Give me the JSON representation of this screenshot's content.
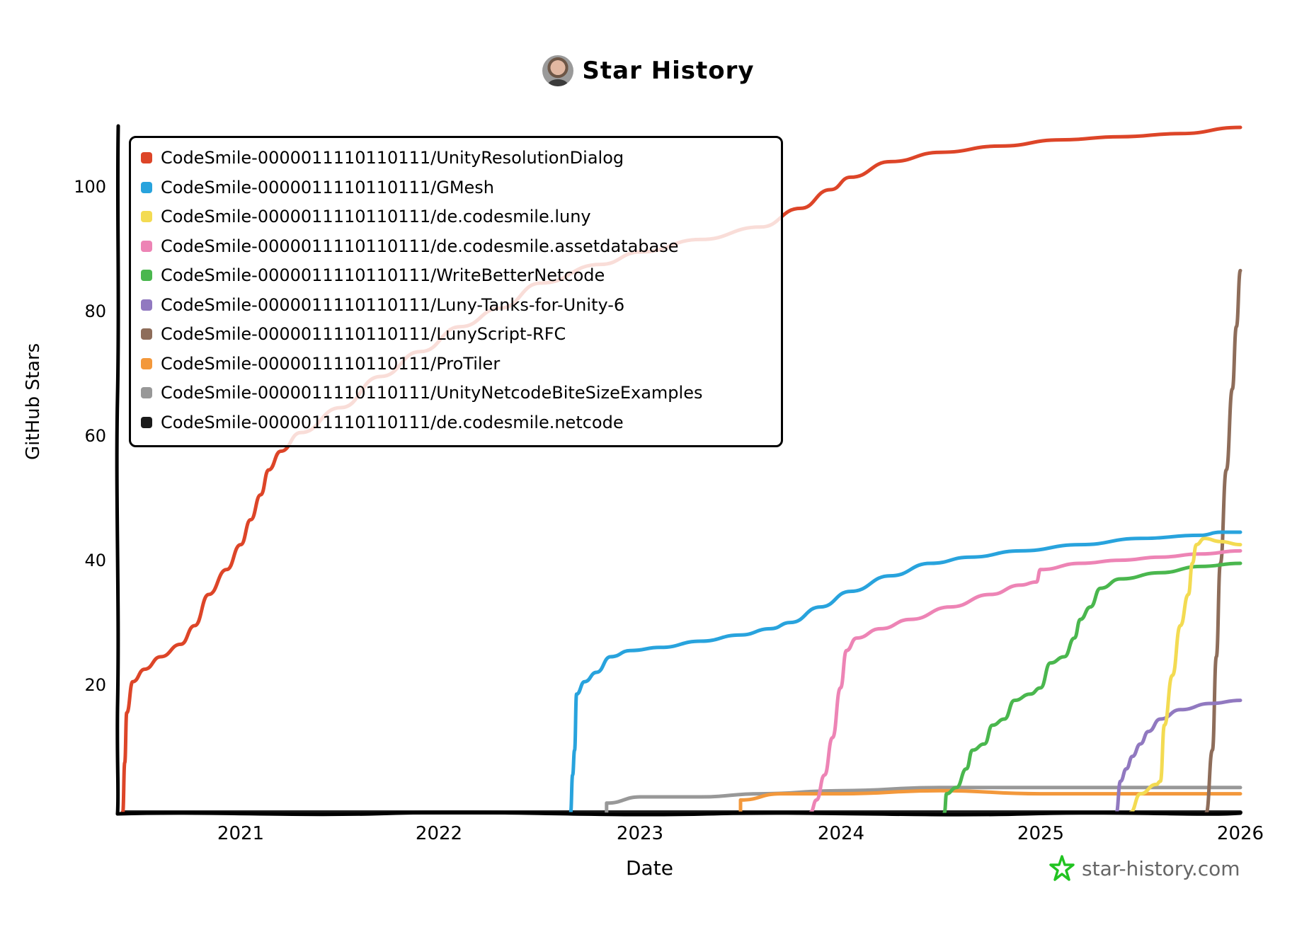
{
  "header": {
    "avatar_alt": "user-avatar",
    "title": "Star History"
  },
  "axes": {
    "xlabel": "Date",
    "ylabel": "GitHub Stars",
    "xticks": [
      "2021",
      "2022",
      "2023",
      "2024",
      "2025",
      "2026"
    ],
    "yticks": [
      "20",
      "40",
      "60",
      "80",
      "100"
    ]
  },
  "watermark": {
    "text": "star-history.com",
    "icon": "star-outline-icon",
    "color": "#21c321"
  },
  "legend": [
    {
      "label": "CodeSmile-0000011110110111/UnityResolutionDialog",
      "color": "#dd4528"
    },
    {
      "label": "CodeSmile-0000011110110111/GMesh",
      "color": "#28a3dd"
    },
    {
      "label": "CodeSmile-0000011110110111/de.codesmile.luny",
      "color": "#f3db52"
    },
    {
      "label": "CodeSmile-0000011110110111/de.codesmile.assetdatabase",
      "color": "#ed84b5"
    },
    {
      "label": "CodeSmile-0000011110110111/WriteBetterNetcode",
      "color": "#4ab74e"
    },
    {
      "label": "CodeSmile-0000011110110111/Luny-Tanks-for-Unity-6",
      "color": "#9179c0"
    },
    {
      "label": "CodeSmile-0000011110110111/LunyScript-RFC",
      "color": "#8e6d5a"
    },
    {
      "label": "CodeSmile-0000011110110111/ProTiler",
      "color": "#f3983b"
    },
    {
      "label": "CodeSmile-0000011110110111/UnityNetcodeBiteSizeExamples",
      "color": "#989898"
    },
    {
      "label": "CodeSmile-0000011110110111/de.codesmile.netcode",
      "color": "#1a1a1a"
    }
  ],
  "chart_data": {
    "type": "line",
    "title": "Star History",
    "xlabel": "Date",
    "ylabel": "GitHub Stars",
    "xlim": [
      2020.4,
      2026.0
    ],
    "ylim": [
      0,
      110
    ],
    "grid": false,
    "legend_position": "top-left",
    "x_tick_labels": [
      "2021",
      "2022",
      "2023",
      "2024",
      "2025",
      "2026"
    ],
    "y_tick_labels": [
      20,
      40,
      60,
      80,
      100
    ],
    "series": [
      {
        "name": "CodeSmile-0000011110110111/UnityResolutionDialog",
        "color": "#dd4528",
        "points": [
          [
            2020.41,
            0
          ],
          [
            2020.42,
            8
          ],
          [
            2020.43,
            16
          ],
          [
            2020.46,
            21
          ],
          [
            2020.52,
            23
          ],
          [
            2020.6,
            25
          ],
          [
            2020.7,
            27
          ],
          [
            2020.77,
            30
          ],
          [
            2020.84,
            35
          ],
          [
            2020.93,
            39
          ],
          [
            2021.0,
            43
          ],
          [
            2021.05,
            47
          ],
          [
            2021.1,
            51
          ],
          [
            2021.14,
            55
          ],
          [
            2021.2,
            58
          ],
          [
            2021.3,
            61
          ],
          [
            2021.5,
            65
          ],
          [
            2021.7,
            70
          ],
          [
            2021.9,
            74
          ],
          [
            2022.1,
            78
          ],
          [
            2022.3,
            81
          ],
          [
            2022.5,
            85
          ],
          [
            2022.8,
            88
          ],
          [
            2023.0,
            90
          ],
          [
            2023.3,
            92
          ],
          [
            2023.6,
            94
          ],
          [
            2023.8,
            97
          ],
          [
            2023.95,
            100
          ],
          [
            2024.05,
            102
          ],
          [
            2024.25,
            104.5
          ],
          [
            2024.5,
            106
          ],
          [
            2024.8,
            107
          ],
          [
            2025.1,
            108
          ],
          [
            2025.4,
            108.5
          ],
          [
            2025.7,
            109
          ],
          [
            2026.0,
            110
          ]
        ]
      },
      {
        "name": "CodeSmile-0000011110110111/GMesh",
        "color": "#28a3dd",
        "points": [
          [
            2022.65,
            0
          ],
          [
            2022.66,
            6
          ],
          [
            2022.67,
            10
          ],
          [
            2022.68,
            19
          ],
          [
            2022.72,
            21
          ],
          [
            2022.78,
            22.5
          ],
          [
            2022.85,
            25
          ],
          [
            2022.95,
            26
          ],
          [
            2023.1,
            26.5
          ],
          [
            2023.3,
            27.5
          ],
          [
            2023.5,
            28.5
          ],
          [
            2023.65,
            29.5
          ],
          [
            2023.75,
            30.5
          ],
          [
            2023.9,
            33
          ],
          [
            2024.05,
            35.5
          ],
          [
            2024.25,
            38
          ],
          [
            2024.45,
            40
          ],
          [
            2024.65,
            41
          ],
          [
            2024.9,
            42
          ],
          [
            2025.2,
            43
          ],
          [
            2025.5,
            44
          ],
          [
            2025.8,
            44.5
          ],
          [
            2025.9,
            45
          ],
          [
            2026.0,
            45
          ]
        ]
      },
      {
        "name": "CodeSmile-0000011110110111/de.codesmile.luny",
        "color": "#f3db52",
        "points": [
          [
            2025.45,
            0
          ],
          [
            2025.5,
            3
          ],
          [
            2025.58,
            4.5
          ],
          [
            2025.6,
            5
          ],
          [
            2025.62,
            14
          ],
          [
            2025.66,
            22
          ],
          [
            2025.7,
            30
          ],
          [
            2025.74,
            35
          ],
          [
            2025.76,
            40
          ],
          [
            2025.78,
            43
          ],
          [
            2025.82,
            44
          ],
          [
            2025.9,
            43.5
          ],
          [
            2026.0,
            43
          ]
        ]
      },
      {
        "name": "CodeSmile-0000011110110111/de.codesmile.assetdatabase",
        "color": "#ed84b5",
        "points": [
          [
            2023.85,
            0
          ],
          [
            2023.88,
            2
          ],
          [
            2023.92,
            6
          ],
          [
            2023.96,
            12
          ],
          [
            2024.0,
            20
          ],
          [
            2024.03,
            26
          ],
          [
            2024.08,
            28
          ],
          [
            2024.2,
            29.5
          ],
          [
            2024.35,
            31
          ],
          [
            2024.55,
            33
          ],
          [
            2024.75,
            35
          ],
          [
            2024.9,
            36.5
          ],
          [
            2024.98,
            37
          ],
          [
            2025.0,
            39
          ],
          [
            2025.2,
            40
          ],
          [
            2025.4,
            40.5
          ],
          [
            2025.6,
            41
          ],
          [
            2025.8,
            41.5
          ],
          [
            2026.0,
            42
          ]
        ]
      },
      {
        "name": "CodeSmile-0000011110110111/WriteBetterNetcode",
        "color": "#4ab74e",
        "points": [
          [
            2024.52,
            0
          ],
          [
            2024.53,
            3
          ],
          [
            2024.58,
            4
          ],
          [
            2024.63,
            7
          ],
          [
            2024.66,
            10
          ],
          [
            2024.72,
            11
          ],
          [
            2024.76,
            14
          ],
          [
            2024.82,
            15
          ],
          [
            2024.87,
            18
          ],
          [
            2024.95,
            19
          ],
          [
            2025.0,
            20
          ],
          [
            2025.05,
            24
          ],
          [
            2025.12,
            25
          ],
          [
            2025.17,
            28
          ],
          [
            2025.2,
            31
          ],
          [
            2025.25,
            33
          ],
          [
            2025.3,
            36
          ],
          [
            2025.4,
            37.5
          ],
          [
            2025.6,
            38.5
          ],
          [
            2025.8,
            39.5
          ],
          [
            2026.0,
            40
          ]
        ]
      },
      {
        "name": "CodeSmile-0000011110110111/Luny-Tanks-for-Unity-6",
        "color": "#9179c0",
        "points": [
          [
            2025.38,
            0
          ],
          [
            2025.4,
            5
          ],
          [
            2025.43,
            7
          ],
          [
            2025.46,
            9
          ],
          [
            2025.5,
            11
          ],
          [
            2025.54,
            13
          ],
          [
            2025.6,
            15
          ],
          [
            2025.7,
            16.5
          ],
          [
            2025.85,
            17.5
          ],
          [
            2026.0,
            18
          ]
        ]
      },
      {
        "name": "CodeSmile-0000011110110111/LunyScript-RFC",
        "color": "#8e6d5a",
        "points": [
          [
            2025.83,
            0
          ],
          [
            2025.86,
            10
          ],
          [
            2025.88,
            25
          ],
          [
            2025.9,
            40
          ],
          [
            2025.93,
            55
          ],
          [
            2025.96,
            68
          ],
          [
            2025.98,
            78
          ],
          [
            2026.0,
            87
          ]
        ]
      },
      {
        "name": "CodeSmile-0000011110110111/ProTiler",
        "color": "#f3983b",
        "points": [
          [
            2023.5,
            0
          ],
          [
            2023.5,
            2
          ],
          [
            2023.7,
            3
          ],
          [
            2024.0,
            3
          ],
          [
            2024.5,
            3.5
          ],
          [
            2025.0,
            3
          ],
          [
            2025.5,
            3
          ],
          [
            2026.0,
            3
          ]
        ]
      },
      {
        "name": "CodeSmile-0000011110110111/UnityNetcodeBiteSizeExamples",
        "color": "#989898",
        "points": [
          [
            2022.83,
            0
          ],
          [
            2022.83,
            1.5
          ],
          [
            2023.0,
            2.5
          ],
          [
            2023.3,
            2.5
          ],
          [
            2023.6,
            3
          ],
          [
            2024.0,
            3.5
          ],
          [
            2024.5,
            4
          ],
          [
            2025.0,
            4
          ],
          [
            2025.5,
            4
          ],
          [
            2026.0,
            4
          ]
        ]
      },
      {
        "name": "CodeSmile-0000011110110111/de.codesmile.netcode",
        "color": "#1a1a1a",
        "points": [
          [
            2020.41,
            0
          ],
          [
            2026.0,
            0
          ]
        ]
      }
    ]
  }
}
